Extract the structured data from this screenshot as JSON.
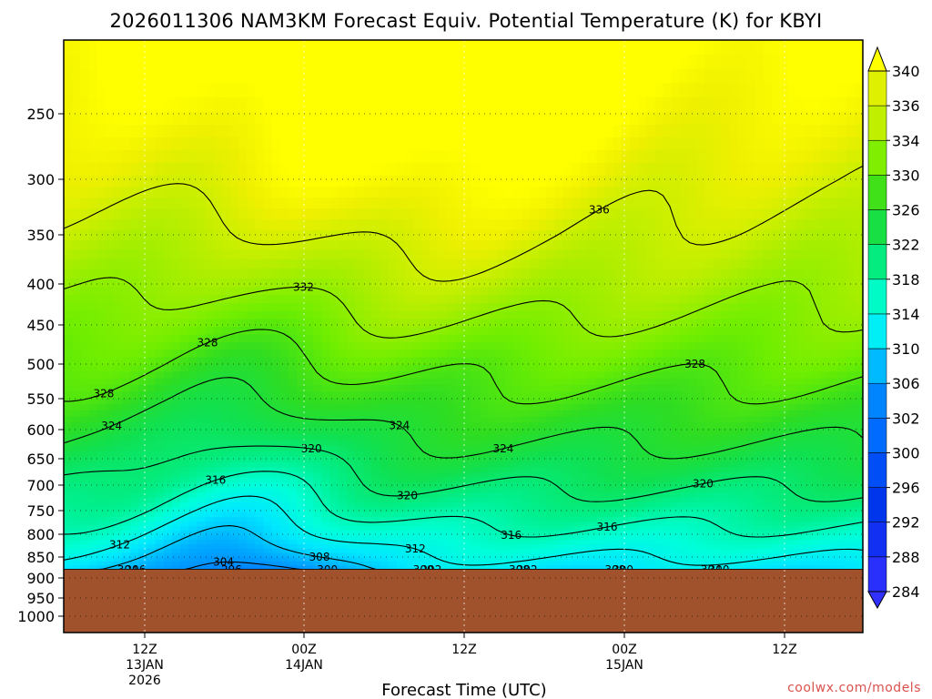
{
  "chart_data": {
    "type": "contour",
    "title": "2026011306 NAM3KM Forecast Equiv. Potential Temperature (K) for KBYI",
    "xlabel": "Forecast Time (UTC)",
    "ylabel": "",
    "y_axis": {
      "scale": "pressure",
      "inverted": true,
      "ylim": [
        1000,
        200
      ],
      "ticks": [
        250,
        300,
        350,
        400,
        450,
        500,
        550,
        600,
        650,
        700,
        750,
        800,
        850,
        900,
        950,
        1000
      ]
    },
    "x_axis": {
      "ticks": [
        {
          "line1": "12Z",
          "line2": "13JAN",
          "line3": "2026"
        },
        {
          "line1": "00Z",
          "line2": "14JAN",
          "line3": ""
        },
        {
          "line1": "12Z",
          "line2": "",
          "line3": ""
        },
        {
          "line1": "00Z",
          "line2": "15JAN",
          "line3": ""
        },
        {
          "line1": "12Z",
          "line2": "",
          "line3": ""
        }
      ]
    },
    "colorbar": {
      "levels": [
        284,
        288,
        292,
        296,
        300,
        302,
        306,
        310,
        314,
        318,
        322,
        326,
        330,
        334,
        336,
        340
      ]
    },
    "contour_interval_K": 4,
    "contour_labels": [
      "328",
      "324",
      "328",
      "332",
      "336",
      "328",
      "324",
      "324",
      "320",
      "320",
      "320",
      "316",
      "316",
      "316",
      "312",
      "312",
      "304",
      "308",
      "308",
      "304",
      "308",
      "304",
      "300",
      "300",
      "300",
      "300",
      "296",
      "292",
      "296",
      "292"
    ],
    "terrain_below_hPa": 880,
    "grid": true
  },
  "credit": "coolwx.com/models",
  "colors": {
    "terrain": "#a0522d",
    "colorbar": [
      "#3333ff",
      "#0022e0",
      "#0033f0",
      "#0066ff",
      "#0088ff",
      "#00aaff",
      "#00ddff",
      "#00ffe0",
      "#00ffb0",
      "#00f070",
      "#00e060",
      "#22dd00",
      "#66ee00",
      "#aaee00",
      "#eeee00"
    ]
  }
}
